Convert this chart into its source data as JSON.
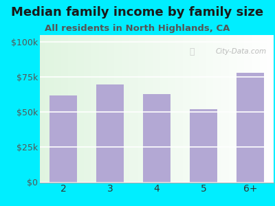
{
  "title": "Median family income by family size",
  "subtitle": "All residents in North Highlands, CA",
  "categories": [
    "2",
    "3",
    "4",
    "5",
    "6+"
  ],
  "values": [
    62000,
    70000,
    63000,
    52000,
    78000
  ],
  "bar_color": "#b3a8d4",
  "background_outer": "#00eeff",
  "yticks": [
    0,
    25000,
    50000,
    75000,
    100000
  ],
  "ytick_labels": [
    "$0",
    "$25k",
    "$50k",
    "$75k",
    "$100k"
  ],
  "ylim": [
    0,
    105000
  ],
  "title_fontsize": 13,
  "subtitle_fontsize": 9.5,
  "tick_fontsize": 9,
  "watermark": "City-Data.com"
}
